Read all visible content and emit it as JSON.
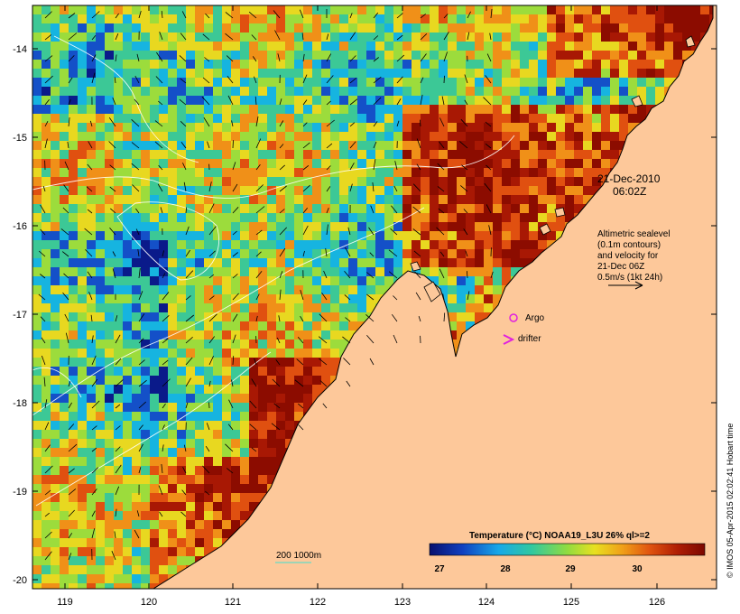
{
  "map": {
    "y_ticks": [
      "-14",
      "-15",
      "-16",
      "-17",
      "-18",
      "-19",
      "-20"
    ],
    "x_ticks": [
      "119",
      "120",
      "121",
      "122",
      "123",
      "124",
      "125",
      "126"
    ],
    "land_color": "#fdc89a",
    "water_scale": [
      "#0a1a8a",
      "#1450c8",
      "#16b4e0",
      "#3cc896",
      "#9cdc3c",
      "#e8d820",
      "#f09018",
      "#e05010",
      "#a81804",
      "#8c0c00"
    ]
  },
  "annotations": {
    "date": "21-Dec-2010",
    "time": "06:02Z",
    "altimetry_lines": [
      "Altimetric sealevel",
      "(0.1m contours)",
      "and velocity for",
      "21-Dec 06Z",
      "0.5m/s (1kt 24h)"
    ],
    "argo_label": "Argo",
    "drifter_label": "drifter",
    "depth_label": "200  1000m"
  },
  "colorbar": {
    "title": "Temperature (°C) NOAA19_L3U 26% ql>=2",
    "ticks": [
      "27",
      "28",
      "29",
      "30"
    ]
  },
  "credit": "© IMOS 05-Apr-2015 02:02:41 Hobart time"
}
